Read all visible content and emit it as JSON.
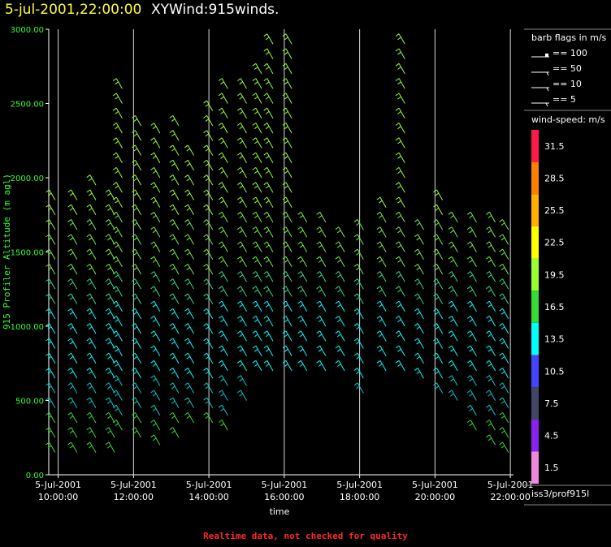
{
  "header": {
    "date_title": "5-jul-2001,22:00:00",
    "main_title": "XYWind:915winds."
  },
  "footer": {
    "note": "Realtime data, not checked for quality"
  },
  "source_label": "iss3/prof915l",
  "colors": {
    "axis": "#ffffff",
    "ylabel": "#33ff33",
    "footer": "#ff2a2a",
    "title_date": "#ffff33"
  },
  "chart_data": {
    "type": "scatter",
    "title": "XYWind:915winds.",
    "xlabel": "time",
    "ylabel": "915 Profiler Altitude (m agl)",
    "ylim": [
      0,
      3000
    ],
    "xlim": [
      "5-Jul-2001 09:45:00",
      "5-Jul-2001 22:05:00"
    ],
    "y_ticks": [
      "0.00",
      "500.00",
      "1000.00",
      "1500.00",
      "2000.00",
      "2500.00",
      "3000.00"
    ],
    "x_ticks": [
      {
        "date": "5-Jul-2001",
        "time": "10:00:00",
        "hour": 10
      },
      {
        "date": "5-Jul-2001",
        "time": "12:00:00",
        "hour": 12
      },
      {
        "date": "5-Jul-2001",
        "time": "14:00:00",
        "hour": 14
      },
      {
        "date": "5-Jul-2001",
        "time": "16:00:00",
        "hour": 16
      },
      {
        "date": "5-Jul-2001",
        "time": "18:00:00",
        "hour": 18
      },
      {
        "date": "5-Jul-2001",
        "time": "20:00:00",
        "hour": 20
      },
      {
        "date": "5-Jul-2001",
        "time": "22:00:00",
        "hour": 22
      }
    ],
    "vertical_gridlines": true,
    "barb_legend": {
      "title": "barb flags in m/s",
      "entries": [
        "== 100",
        "== 50",
        "== 10",
        "== 5"
      ]
    },
    "color_scale": {
      "title": "wind-speed: m/s",
      "levels": [
        {
          "label": "31.5",
          "color": "#ff1a4a"
        },
        {
          "label": "28.5",
          "color": "#ff8000"
        },
        {
          "label": "25.5",
          "color": "#ffb000"
        },
        {
          "label": "22.5",
          "color": "#ffff00"
        },
        {
          "label": "19.5",
          "color": "#99ff33"
        },
        {
          "label": "16.5",
          "color": "#33dd33"
        },
        {
          "label": "13.5",
          "color": "#00ffff"
        },
        {
          "label": "10.5",
          "color": "#4444ff"
        },
        {
          "label": "7.5",
          "color": "#444466"
        },
        {
          "label": "4.5",
          "color": "#8822ee"
        },
        {
          "label": "1.5",
          "color": "#ee88dd"
        }
      ]
    },
    "series": [
      {
        "hour": 9.92,
        "top": 1900,
        "low": 150,
        "pattern": "profile"
      },
      {
        "hour": 10.5,
        "top": 1880,
        "low": 150,
        "pattern": "profile"
      },
      {
        "hour": 11.0,
        "top": 1980,
        "low": 150,
        "pattern": "profile"
      },
      {
        "hour": 11.5,
        "top": 1880,
        "low": 150,
        "pattern": "profile"
      },
      {
        "hour": 11.7,
        "top": 2680,
        "low": 300,
        "pattern": "profile"
      },
      {
        "hour": 12.2,
        "top": 2400,
        "low": 250,
        "pattern": "profile"
      },
      {
        "hour": 12.7,
        "top": 2300,
        "low": 200,
        "pattern": "profile"
      },
      {
        "hour": 13.2,
        "top": 2400,
        "low": 250,
        "pattern": "profile"
      },
      {
        "hour": 13.6,
        "top": 2200,
        "low": 350,
        "pattern": "profile"
      },
      {
        "hour": 14.1,
        "top": 2500,
        "low": 350,
        "pattern": "profile"
      },
      {
        "hour": 14.5,
        "top": 2600,
        "low": 300,
        "pattern": "profile"
      },
      {
        "hour": 15.0,
        "top": 2600,
        "low": 500,
        "pattern": "profile"
      },
      {
        "hour": 15.4,
        "top": 2700,
        "low": 700,
        "pattern": "profile"
      },
      {
        "hour": 15.7,
        "top": 2900,
        "low": 700,
        "pattern": "profile"
      },
      {
        "hour": 16.2,
        "top": 2900,
        "low": 700,
        "pattern": "profile"
      },
      {
        "hour": 16.6,
        "top": 1720,
        "low": 700,
        "pattern": "profile"
      },
      {
        "hour": 17.1,
        "top": 1720,
        "low": 700,
        "pattern": "profile"
      },
      {
        "hour": 17.6,
        "top": 1680,
        "low": 700,
        "pattern": "profile"
      },
      {
        "hour": 18.1,
        "top": 1720,
        "low": 550,
        "pattern": "profile"
      },
      {
        "hour": 18.7,
        "top": 1820,
        "low": 700,
        "pattern": "profile"
      },
      {
        "hour": 19.2,
        "top": 2980,
        "low": 700,
        "pattern": "profile"
      },
      {
        "hour": 19.7,
        "top": 1720,
        "low": 650,
        "pattern": "profile"
      },
      {
        "hour": 20.2,
        "top": 1920,
        "low": 550,
        "pattern": "profile"
      },
      {
        "hour": 20.6,
        "top": 1720,
        "low": 500,
        "pattern": "profile"
      },
      {
        "hour": 21.1,
        "top": 1720,
        "low": 300,
        "pattern": "profile"
      },
      {
        "hour": 21.6,
        "top": 1720,
        "low": 200,
        "pattern": "profile"
      },
      {
        "hour": 21.95,
        "top": 1720,
        "low": 150,
        "pattern": "profile"
      }
    ]
  }
}
